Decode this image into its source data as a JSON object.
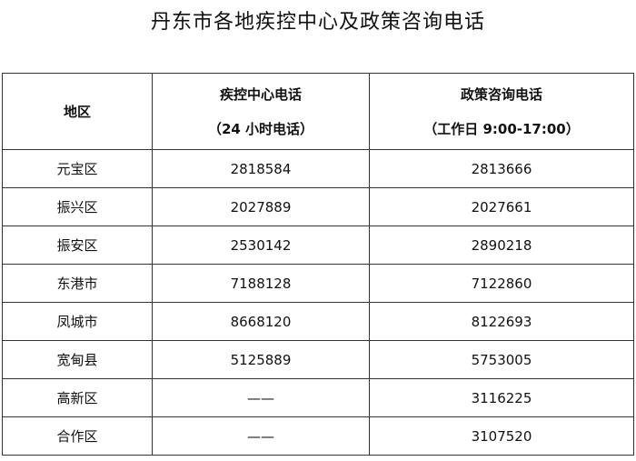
{
  "title": "丹东市各地疾控中心及政策咨询电话",
  "headers": [
    {
      "line1": "地区",
      "line2": ""
    },
    {
      "line1": "疾控中心电话",
      "line2": "（24 小时电话）"
    },
    {
      "line1": "政策咨询电话",
      "line2": "（工作日 9:00-17:00）"
    }
  ],
  "rows": [
    [
      "元宝区",
      "2818584",
      "2813666"
    ],
    [
      "振兴区",
      "2027889",
      "2027661"
    ],
    [
      "振安区",
      "2530142",
      "2890218"
    ],
    [
      "东港市",
      "7188128",
      "7122860"
    ],
    [
      "凤城市",
      "8668120",
      "8122693"
    ],
    [
      "宽甸县",
      "5125889",
      "5753005"
    ],
    [
      "高新区",
      "——",
      "3116225"
    ],
    [
      "合作区",
      "——",
      "3107520"
    ]
  ]
}
